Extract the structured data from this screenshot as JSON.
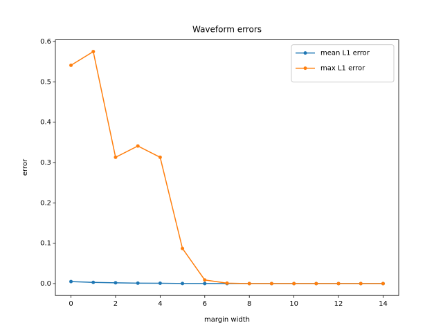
{
  "chart_data": {
    "type": "line",
    "title": "Waveform errors",
    "x_label": "margin width",
    "y_label": "error",
    "x": [
      0,
      1,
      2,
      3,
      4,
      5,
      6,
      7,
      8,
      9,
      10,
      11,
      12,
      13,
      14
    ],
    "series": [
      {
        "name": "mean L1 error",
        "color": "#1f77b4",
        "values": [
          0.005,
          0.003,
          0.002,
          0.001,
          0.0008,
          0.0002,
          0.0001,
          0,
          0,
          0,
          0,
          0,
          0,
          0,
          0
        ]
      },
      {
        "name": "max L1 error",
        "color": "#ff7f0e",
        "values": [
          0.541,
          0.575,
          0.313,
          0.341,
          0.313,
          0.087,
          0.009,
          0.001,
          0,
          0,
          0,
          0,
          0,
          0,
          0
        ]
      }
    ],
    "xlim": [
      -0.7,
      14.7
    ],
    "ylim": [
      -0.0295,
      0.6041
    ],
    "xticks": [
      0,
      2,
      4,
      6,
      8,
      10,
      12,
      14
    ],
    "yticks": [
      {
        "value": 0,
        "label": "0.0"
      },
      0.1,
      0.2,
      0.3,
      0.4,
      0.5,
      0.6
    ],
    "legend": "upper right",
    "grid": false
  }
}
